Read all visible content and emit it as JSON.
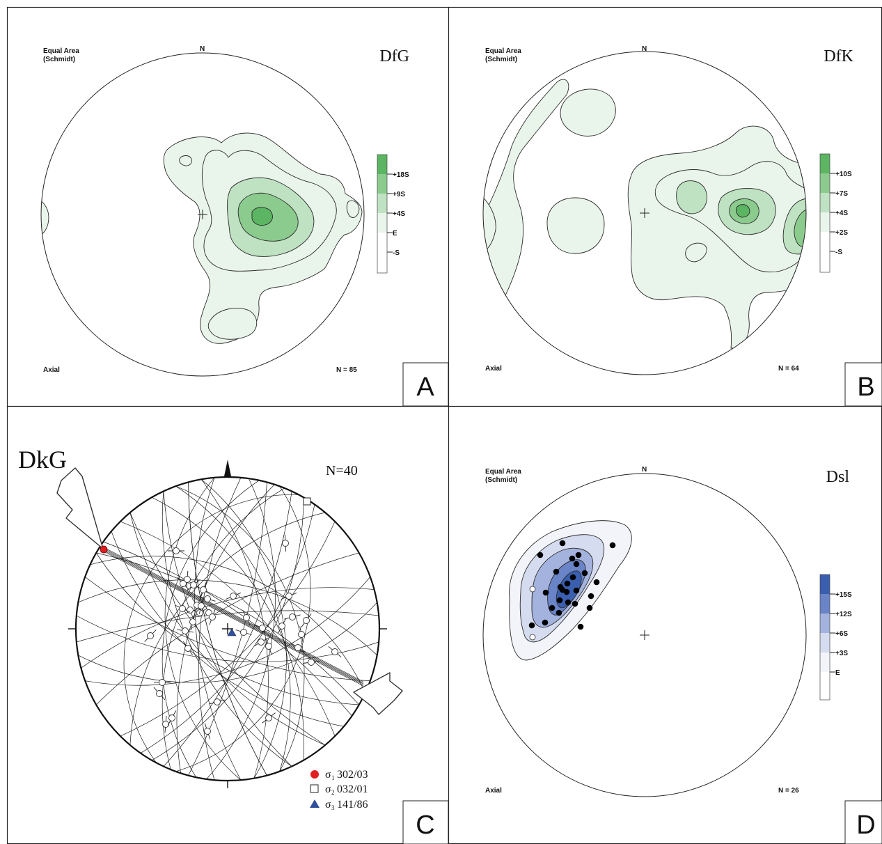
{
  "figure": {
    "panels": [
      {
        "letter": "A",
        "projection_line1": "Equal Area",
        "projection_line2": "(Schmidt)",
        "north": "N",
        "title": "DfG",
        "plot_type": "Axial",
        "count": "N = 85",
        "legend": [
          "+18S",
          "+9S",
          "+4S",
          "E",
          "-S"
        ],
        "colors": [
          "#5cb562",
          "#8ccb8e",
          "#bfe2c2",
          "#e9f4ea",
          "#ffffff"
        ]
      },
      {
        "letter": "B",
        "projection_line1": "Equal Area",
        "projection_line2": "(Schmidt)",
        "north": "N",
        "title": "DfK",
        "plot_type": "Axial",
        "count": "N = 64",
        "legend": [
          "+10S",
          "+7S",
          "+4S",
          "+2S",
          "-S"
        ],
        "colors": [
          "#5cb562",
          "#8ccb8e",
          "#bfe2c2",
          "#e9f4ea",
          "#ffffff"
        ]
      },
      {
        "letter": "C",
        "title": "DkG",
        "count": "N=40",
        "stress_axes": [
          {
            "symbol": "σ",
            "index": "1",
            "value": "302/03",
            "marker": "red-circle",
            "color": "#e02020"
          },
          {
            "symbol": "σ",
            "index": "2",
            "value": "032/01",
            "marker": "open-square",
            "color": "#ffffff"
          },
          {
            "symbol": "σ",
            "index": "3",
            "value": "141/86",
            "marker": "blue-triangle",
            "color": "#2e4f9a"
          }
        ]
      },
      {
        "letter": "D",
        "projection_line1": "Equal Area",
        "projection_line2": "(Schmidt)",
        "north": "N",
        "title": "Dsl",
        "plot_type": "Axial",
        "count": "N = 26",
        "legend": [
          "+15S",
          "+12S",
          "+6S",
          "+3S",
          "E"
        ],
        "colors": [
          "#3a5fb0",
          "#6a84c8",
          "#a4b3dd",
          "#d6dcef",
          "#f2f4fa"
        ]
      }
    ]
  }
}
